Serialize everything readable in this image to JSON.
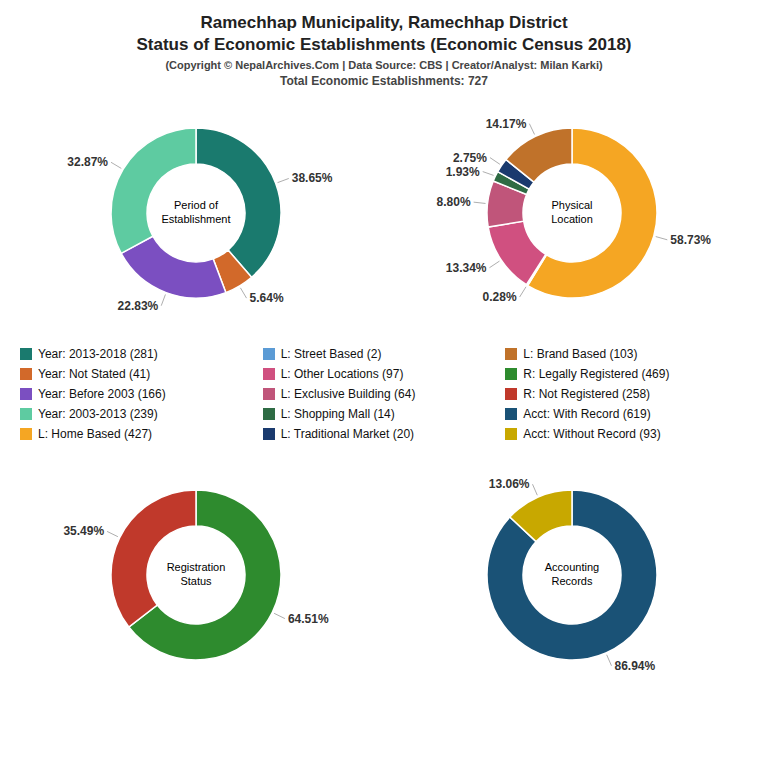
{
  "title": "Ramechhap Municipality, Ramechhap District\nStatus of Economic Establishments (Economic Census 2018)",
  "subtitle": [
    "(Copyright © NepalArchives.Com | Data Source: CBS | Creator/Analyst: Milan Karki)",
    "Total Economic Establishments: 727"
  ],
  "chart_data": [
    {
      "type": "pie",
      "title": "Period of\nEstablishment",
      "categories": [
        "Year: 2013-2018 (281)",
        "Year: Not Stated (41)",
        "Year: Before 2003 (166)",
        "Year: 2003-2013 (239)"
      ],
      "values": [
        38.65,
        5.64,
        22.83,
        32.87
      ],
      "value_labels": [
        "38.65%",
        "5.64%",
        "22.83%",
        "32.87%"
      ],
      "colors": [
        "#1a7a6e",
        "#d2692a",
        "#7b4fc1",
        "#5ecba1"
      ],
      "data_labels": true,
      "legend": "center"
    },
    {
      "type": "pie",
      "title": "Physical\nLocation",
      "categories": [
        "L: Home Based (427)",
        "L: Street Based (2)",
        "L: Other Locations (97)",
        "L: Exclusive Building (64)",
        "L: Shopping Mall (14)",
        "L: Traditional Market (20)",
        "L: Brand Based (103)"
      ],
      "values": [
        58.73,
        0.28,
        13.34,
        8.8,
        1.93,
        2.75,
        14.17
      ],
      "value_labels": [
        "58.73%",
        "0.28%",
        "13.34%",
        "8.80%",
        "1.93%",
        "2.75%",
        "14.17%"
      ],
      "colors": [
        "#f5a623",
        "#5b9bd5",
        "#d05080",
        "#c0557a",
        "#2e6b44",
        "#1a3a6e",
        "#c0722a"
      ],
      "data_labels": true,
      "legend": "center"
    },
    {
      "type": "pie",
      "title": "Registration\nStatus",
      "categories": [
        "R: Legally Registered (469)",
        "R: Not Registered (258)"
      ],
      "values": [
        64.51,
        35.49
      ],
      "value_labels": [
        "64.51%",
        "35.49%"
      ],
      "colors": [
        "#2e8b2e",
        "#c0392b"
      ],
      "data_labels": true,
      "legend": "center"
    },
    {
      "type": "pie",
      "title": "Accounting\nRecords",
      "categories": [
        "Acct: With Record (619)",
        "Acct: Without Record (93)"
      ],
      "values": [
        86.94,
        13.06
      ],
      "value_labels": [
        "86.94%",
        "13.06%"
      ],
      "colors": [
        "#1a5276",
        "#c8a800"
      ],
      "data_labels": true,
      "legend": "center"
    }
  ]
}
